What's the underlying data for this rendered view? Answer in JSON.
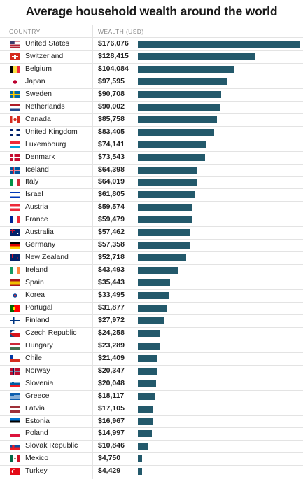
{
  "chart_data": {
    "type": "bar",
    "orientation": "horizontal",
    "title": "Average household wealth around the world",
    "column_headers": [
      "COUNTRY",
      "WEALTH (USD)"
    ],
    "xlim": [
      0,
      176076
    ],
    "bar_color": "#23596b",
    "rows": [
      {
        "country": "United States",
        "label": "$176,076",
        "value": 176076,
        "flag": "us"
      },
      {
        "country": "Switzerland",
        "label": "$128,415",
        "value": 128415,
        "flag": "ch"
      },
      {
        "country": "Belgium",
        "label": "$104,084",
        "value": 104084,
        "flag": "be"
      },
      {
        "country": "Japan",
        "label": "$97,595",
        "value": 97595,
        "flag": "jp"
      },
      {
        "country": "Sweden",
        "label": "$90,708",
        "value": 90708,
        "flag": "se"
      },
      {
        "country": "Netherlands",
        "label": "$90,002",
        "value": 90002,
        "flag": "nl"
      },
      {
        "country": "Canada",
        "label": "$85,758",
        "value": 85758,
        "flag": "ca"
      },
      {
        "country": "United Kingdom",
        "label": "$83,405",
        "value": 83405,
        "flag": "gb"
      },
      {
        "country": "Luxembourg",
        "label": "$74,141",
        "value": 74141,
        "flag": "lu"
      },
      {
        "country": "Denmark",
        "label": "$73,543",
        "value": 73543,
        "flag": "dk"
      },
      {
        "country": "Iceland",
        "label": "$64,398",
        "value": 64398,
        "flag": "is"
      },
      {
        "country": "Italy",
        "label": "$64,019",
        "value": 64019,
        "flag": "it"
      },
      {
        "country": "Israel",
        "label": "$61,805",
        "value": 61805,
        "flag": "il"
      },
      {
        "country": "Austria",
        "label": "$59,574",
        "value": 59574,
        "flag": "at"
      },
      {
        "country": "France",
        "label": "$59,479",
        "value": 59479,
        "flag": "fr"
      },
      {
        "country": "Australia",
        "label": "$57,462",
        "value": 57462,
        "flag": "au"
      },
      {
        "country": "Germany",
        "label": "$57,358",
        "value": 57358,
        "flag": "de"
      },
      {
        "country": "New Zealand",
        "label": "$52,718",
        "value": 52718,
        "flag": "nz"
      },
      {
        "country": "Ireland",
        "label": "$43,493",
        "value": 43493,
        "flag": "ie"
      },
      {
        "country": "Spain",
        "label": "$35,443",
        "value": 35443,
        "flag": "es"
      },
      {
        "country": "Korea",
        "label": "$33,495",
        "value": 33495,
        "flag": "kr"
      },
      {
        "country": "Portugal",
        "label": "$31,877",
        "value": 31877,
        "flag": "pt"
      },
      {
        "country": "Finland",
        "label": "$27,972",
        "value": 27972,
        "flag": "fi"
      },
      {
        "country": "Czech Republic",
        "label": "$24,258",
        "value": 24258,
        "flag": "cz"
      },
      {
        "country": "Hungary",
        "label": "$23,289",
        "value": 23289,
        "flag": "hu"
      },
      {
        "country": "Chile",
        "label": "$21,409",
        "value": 21409,
        "flag": "cl"
      },
      {
        "country": "Norway",
        "label": "$20,347",
        "value": 20347,
        "flag": "no"
      },
      {
        "country": "Slovenia",
        "label": "$20,048",
        "value": 20048,
        "flag": "si"
      },
      {
        "country": "Greece",
        "label": "$18,117",
        "value": 18117,
        "flag": "gr"
      },
      {
        "country": "Latvia",
        "label": "$17,105",
        "value": 17105,
        "flag": "lv"
      },
      {
        "country": "Estonia",
        "label": "$16,967",
        "value": 16967,
        "flag": "ee"
      },
      {
        "country": "Poland",
        "label": "$14,997",
        "value": 14997,
        "flag": "pl"
      },
      {
        "country": "Slovak Republic",
        "label": "$10,846",
        "value": 10846,
        "flag": "sk"
      },
      {
        "country": "Mexico",
        "label": "$4,750",
        "value": 4750,
        "flag": "mx"
      },
      {
        "country": "Turkey",
        "label": "$4,429",
        "value": 4429,
        "flag": "tr"
      }
    ]
  }
}
